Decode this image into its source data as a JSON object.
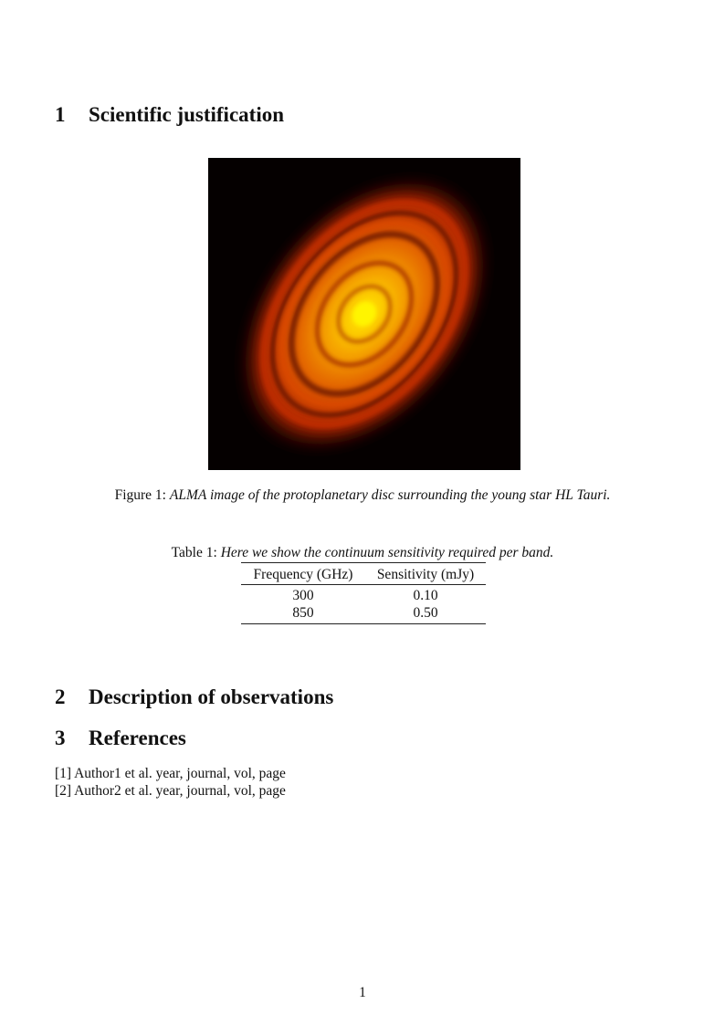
{
  "sections": [
    {
      "number": "1",
      "title": "Scientific justification"
    },
    {
      "number": "2",
      "title": "Description of observations"
    },
    {
      "number": "3",
      "title": "References"
    }
  ],
  "figure": {
    "label": "Figure 1:",
    "caption": "ALMA image of the protoplanetary disc surrounding the young star HL Tauri.",
    "colors": {
      "background": "#050000",
      "core": "#fff200",
      "mid": "#f08a00",
      "outer": "#c02800"
    }
  },
  "table": {
    "label": "Table 1:",
    "caption": "Here we show the continuum sensitivity required per band.",
    "headers": [
      "Frequency (GHz)",
      "Sensitivity (mJy)"
    ],
    "rows": [
      [
        "300",
        "0.10"
      ],
      [
        "850",
        "0.50"
      ]
    ]
  },
  "references": [
    "[1] Author1 et al. year, journal, vol, page",
    "[2] Author2 et al. year, journal, vol, page"
  ],
  "page_number": "1"
}
